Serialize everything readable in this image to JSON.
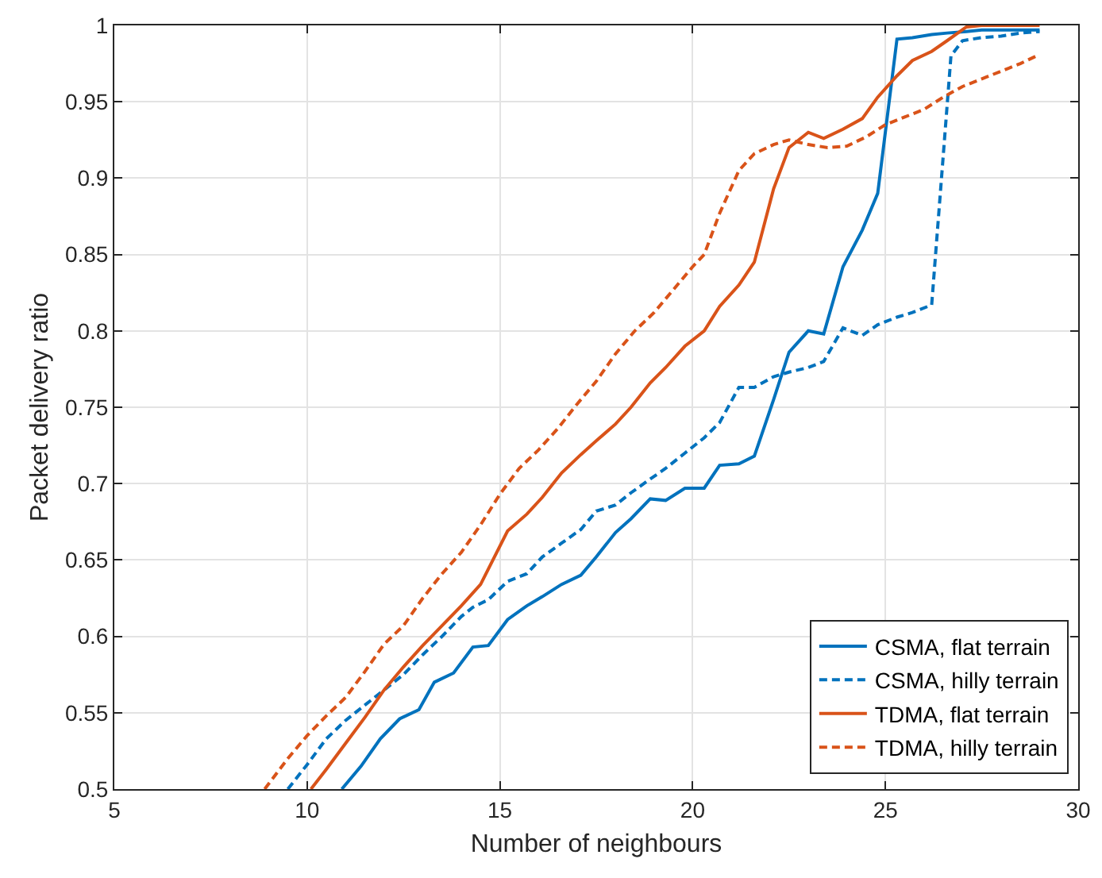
{
  "chart_data": {
    "type": "line",
    "xlabel": "Number of neighbours",
    "ylabel": "Packet delivery ratio",
    "xlim": [
      5,
      30
    ],
    "xticks": [
      5,
      10,
      15,
      20,
      25,
      30
    ],
    "ylim": [
      0.5,
      1
    ],
    "yticks": [
      0.5,
      0.55,
      0.6,
      0.65,
      0.7,
      0.75,
      0.8,
      0.85,
      0.9,
      0.95,
      1
    ],
    "grid": true,
    "legend": "bottom right",
    "marker": "none",
    "series": [
      {
        "name": "CSMA, flat terrain",
        "color": "#0072bd",
        "line_style": "solid",
        "x": [
          10.9,
          11.4,
          11.9,
          12.4,
          12.9,
          13.3,
          13.8,
          14.3,
          14.7,
          15.2,
          15.7,
          16.1,
          16.6,
          17.1,
          17.5,
          18,
          18.4,
          18.9,
          19.3,
          19.8,
          20.3,
          20.7,
          21.2,
          21.6,
          22.1,
          22.5,
          23,
          23.4,
          23.9,
          24.4,
          24.8,
          25.3,
          25.7,
          26.2,
          26.6,
          27.1,
          27.5,
          28,
          28.5,
          29
        ],
        "values": [
          0.5,
          0.515,
          0.533,
          0.546,
          0.552,
          0.57,
          0.576,
          0.593,
          0.594,
          0.611,
          0.62,
          0.626,
          0.634,
          0.64,
          0.652,
          0.668,
          0.677,
          0.69,
          0.689,
          0.697,
          0.697,
          0.712,
          0.713,
          0.718,
          0.755,
          0.786,
          0.8,
          0.798,
          0.842,
          0.866,
          0.89,
          0.991,
          0.992,
          0.994,
          0.995,
          0.996,
          0.997,
          0.997,
          0.997,
          0.997
        ]
      },
      {
        "name": "CSMA, hilly terrain",
        "color": "#0072bd",
        "line_style": "dashed",
        "x": [
          9.5,
          10,
          10.5,
          11,
          11.5,
          12,
          12.5,
          13,
          13.5,
          14,
          14.3,
          14.7,
          15.2,
          15.7,
          16.1,
          16.6,
          17.1,
          17.5,
          18,
          18.4,
          18.9,
          19.3,
          19.8,
          20.3,
          20.7,
          21.2,
          21.6,
          22.1,
          22.5,
          23,
          23.4,
          23.9,
          24.4,
          24.8,
          25.3,
          25.7,
          26.2,
          26.7,
          27,
          27.5,
          28,
          28.5,
          29
        ],
        "values": [
          0.5,
          0.516,
          0.533,
          0.545,
          0.555,
          0.565,
          0.575,
          0.588,
          0.6,
          0.613,
          0.619,
          0.624,
          0.636,
          0.641,
          0.652,
          0.661,
          0.67,
          0.682,
          0.686,
          0.694,
          0.703,
          0.71,
          0.72,
          0.73,
          0.74,
          0.763,
          0.763,
          0.77,
          0.773,
          0.776,
          0.78,
          0.802,
          0.797,
          0.804,
          0.809,
          0.812,
          0.817,
          0.98,
          0.99,
          0.992,
          0.993,
          0.995,
          0.996
        ]
      },
      {
        "name": "TDMA, flat terrain",
        "color": "#d95319",
        "line_style": "solid",
        "x": [
          10.1,
          10.5,
          11,
          11.5,
          12,
          12.5,
          13,
          13.5,
          14,
          14.5,
          15.2,
          15.7,
          16.1,
          16.6,
          17.1,
          17.5,
          18,
          18.4,
          18.9,
          19.3,
          19.8,
          20.3,
          20.7,
          21.2,
          21.6,
          22.1,
          22.5,
          23,
          23.4,
          23.9,
          24.4,
          24.8,
          25.3,
          25.7,
          26.2,
          26.6,
          27.1,
          27.5,
          28,
          28.5,
          29
        ],
        "values": [
          0.5,
          0.513,
          0.53,
          0.547,
          0.565,
          0.58,
          0.594,
          0.607,
          0.62,
          0.634,
          0.669,
          0.68,
          0.691,
          0.707,
          0.719,
          0.728,
          0.739,
          0.75,
          0.766,
          0.776,
          0.79,
          0.8,
          0.816,
          0.83,
          0.845,
          0.893,
          0.92,
          0.93,
          0.926,
          0.932,
          0.939,
          0.953,
          0.967,
          0.977,
          0.983,
          0.99,
          0.999,
          1,
          1,
          1,
          1
        ]
      },
      {
        "name": "TDMA, hilly terrain",
        "color": "#d95319",
        "line_style": "dashed",
        "x": [
          8.9,
          9.5,
          10,
          10.5,
          11,
          11.5,
          12,
          12.5,
          13,
          13.5,
          14,
          14.5,
          15,
          15.5,
          16,
          16.5,
          17,
          17.5,
          18,
          18.5,
          19,
          19.5,
          20,
          20.3,
          20.7,
          21.2,
          21.6,
          22.1,
          22.5,
          23,
          23.5,
          24,
          24.5,
          25,
          25.5,
          26,
          26.5,
          27,
          27.5,
          28,
          28.5,
          29
        ],
        "values": [
          0.5,
          0.52,
          0.535,
          0.548,
          0.56,
          0.577,
          0.595,
          0.607,
          0.625,
          0.641,
          0.655,
          0.673,
          0.693,
          0.71,
          0.722,
          0.736,
          0.752,
          0.767,
          0.785,
          0.8,
          0.812,
          0.827,
          0.842,
          0.85,
          0.877,
          0.905,
          0.916,
          0.922,
          0.925,
          0.922,
          0.92,
          0.921,
          0.927,
          0.935,
          0.94,
          0.945,
          0.953,
          0.96,
          0.965,
          0.97,
          0.975,
          0.981
        ]
      }
    ]
  }
}
